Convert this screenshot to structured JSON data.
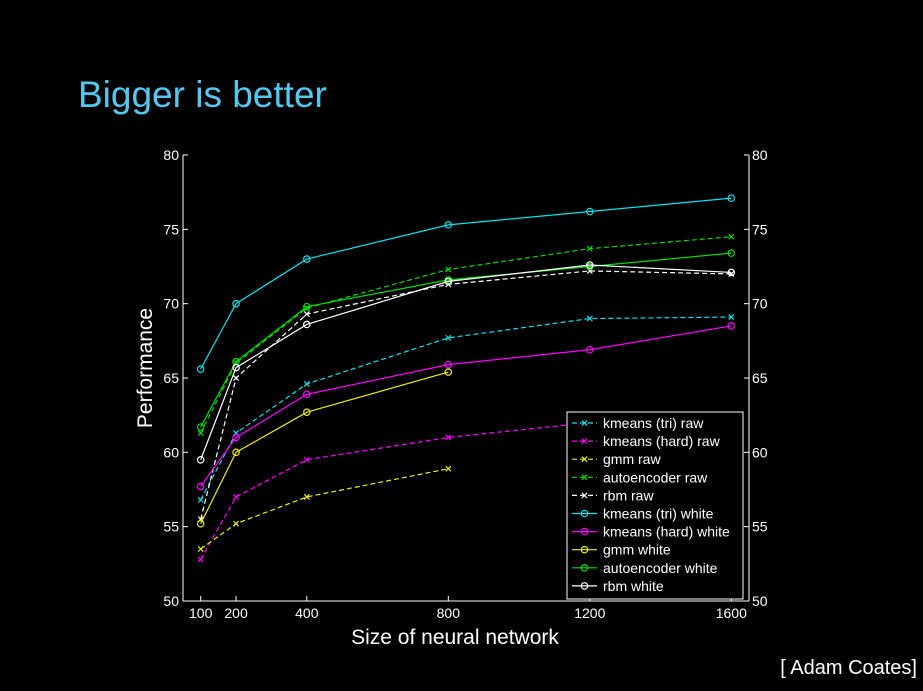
{
  "slide": {
    "title": "Bigger is better",
    "credit": "[ Adam Coates]"
  },
  "chart_data": {
    "type": "line",
    "xlabel": "Size of neural network",
    "ylabel": "Performance",
    "x_ticks": [
      100,
      200,
      400,
      800,
      1200,
      1600
    ],
    "y_ticks": [
      50,
      55,
      60,
      65,
      70,
      75,
      80
    ],
    "xlim": [
      50,
      1650
    ],
    "ylim": [
      50,
      80
    ],
    "right_axis_ticks": [
      50,
      55,
      60,
      65,
      70,
      75,
      80
    ],
    "grid": false,
    "legend_position": "lower-right",
    "series": [
      {
        "name": "kmeans (tri) raw",
        "color": "#00e5ee",
        "style": "dashed",
        "marker": "x",
        "x": [
          100,
          200,
          400,
          800,
          1200,
          1600
        ],
        "y": [
          56.8,
          61.3,
          64.6,
          67.7,
          69.0,
          69.1
        ]
      },
      {
        "name": "kmeans (hard) raw",
        "color": "#ff00ff",
        "style": "dashed",
        "marker": "x",
        "x": [
          100,
          200,
          400,
          800,
          1200
        ],
        "y": [
          52.8,
          57.0,
          59.5,
          61.0,
          62.0
        ]
      },
      {
        "name": "gmm raw",
        "color": "#eeee00",
        "style": "dashed",
        "marker": "x",
        "x": [
          100,
          200,
          400,
          800
        ],
        "y": [
          53.5,
          55.2,
          57.0,
          58.9
        ]
      },
      {
        "name": "autoencoder raw",
        "color": "#00dd00",
        "style": "dashed",
        "marker": "x",
        "x": [
          100,
          200,
          400,
          800,
          1200,
          1600
        ],
        "y": [
          61.3,
          66.0,
          69.7,
          72.3,
          73.7,
          74.5
        ]
      },
      {
        "name": "rbm raw",
        "color": "#ffffff",
        "style": "dashed",
        "marker": "x",
        "x": [
          100,
          200,
          400,
          800,
          1200,
          1600
        ],
        "y": [
          55.5,
          65.0,
          69.3,
          71.3,
          72.2,
          72.0
        ]
      },
      {
        "name": "kmeans (tri) white",
        "color": "#00e5ee",
        "style": "solid",
        "marker": "o",
        "x": [
          100,
          200,
          400,
          800,
          1200,
          1600
        ],
        "y": [
          65.6,
          70.0,
          73.0,
          75.3,
          76.2,
          77.1
        ]
      },
      {
        "name": "kmeans (hard) white",
        "color": "#ff00ff",
        "style": "solid",
        "marker": "o",
        "x": [
          100,
          200,
          400,
          800,
          1200,
          1600
        ],
        "y": [
          57.7,
          61.0,
          63.9,
          65.9,
          66.9,
          68.5
        ]
      },
      {
        "name": "gmm white",
        "color": "#eeee00",
        "style": "solid",
        "marker": "o",
        "x": [
          100,
          200,
          400,
          800
        ],
        "y": [
          55.2,
          60.0,
          62.7,
          65.4
        ]
      },
      {
        "name": "autoencoder white",
        "color": "#00dd00",
        "style": "solid",
        "marker": "o",
        "x": [
          100,
          200,
          400,
          800,
          1200,
          1600
        ],
        "y": [
          61.7,
          66.1,
          69.8,
          71.6,
          72.5,
          73.4
        ]
      },
      {
        "name": "rbm white",
        "color": "#ffffff",
        "style": "solid",
        "marker": "o",
        "x": [
          100,
          200,
          400,
          800,
          1200,
          1600
        ],
        "y": [
          59.5,
          65.7,
          68.6,
          71.5,
          72.6,
          72.1
        ]
      }
    ]
  }
}
